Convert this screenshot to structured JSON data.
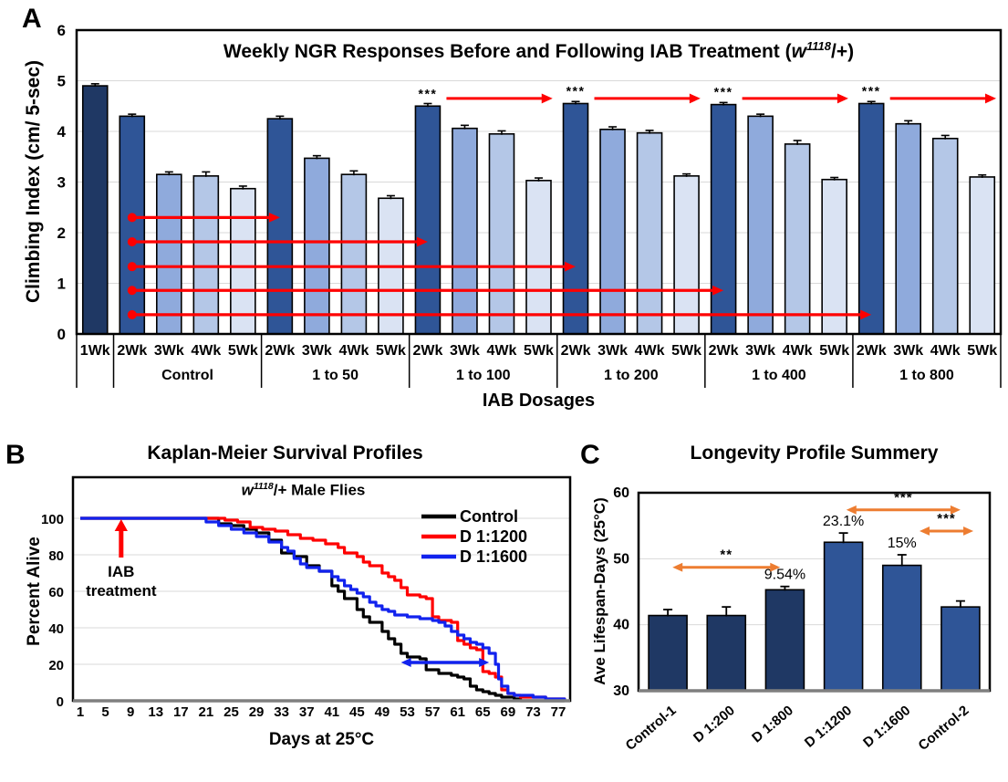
{
  "chart_data": [
    {
      "panel": "A",
      "type": "bar",
      "title_parts": {
        "pre": "Weekly NGR Responses Before and Following IAB Treatment (",
        "gene": "w",
        "sup": "1118",
        "post": "/+)"
      },
      "ylabel": "Climbing Index (cm/ 5-sec)",
      "xlabel": "IAB Dosages",
      "ylim": [
        0,
        6
      ],
      "yticks": [
        0,
        1,
        2,
        3,
        4,
        5,
        6
      ],
      "grid_color": "#D9D9D9",
      "bar_outline": "#000000",
      "annotation_color": "#FF0000",
      "week_colors": {
        "1Wk": "#1F3864",
        "2Wk": "#2F5597",
        "3Wk": "#8FAADC",
        "4Wk": "#B4C7E7",
        "5Wk": "#DAE3F3"
      },
      "groups": [
        {
          "name": "",
          "weeks": [
            "1Wk"
          ],
          "values": [
            4.9
          ],
          "errors": [
            0.04
          ]
        },
        {
          "name": "Control",
          "weeks": [
            "2Wk",
            "3Wk",
            "4Wk",
            "5Wk"
          ],
          "values": [
            4.3,
            3.15,
            3.12,
            2.87
          ],
          "errors": [
            0.04,
            0.05,
            0.08,
            0.05
          ]
        },
        {
          "name": "1 to 50",
          "weeks": [
            "2Wk",
            "3Wk",
            "4Wk",
            "5Wk"
          ],
          "values": [
            4.25,
            3.47,
            3.15,
            2.68
          ],
          "errors": [
            0.05,
            0.05,
            0.07,
            0.05
          ]
        },
        {
          "name": "1 to 100",
          "weeks": [
            "2Wk",
            "3Wk",
            "4Wk",
            "5Wk"
          ],
          "values": [
            4.5,
            4.06,
            3.95,
            3.03
          ],
          "errors": [
            0.05,
            0.06,
            0.06,
            0.05
          ],
          "sig": "***"
        },
        {
          "name": "1 to 200",
          "weeks": [
            "2Wk",
            "3Wk",
            "4Wk",
            "5Wk"
          ],
          "values": [
            4.55,
            4.04,
            3.97,
            3.12
          ],
          "errors": [
            0.04,
            0.05,
            0.05,
            0.04
          ],
          "sig": "***"
        },
        {
          "name": "1 to 400",
          "weeks": [
            "2Wk",
            "3Wk",
            "4Wk",
            "5Wk"
          ],
          "values": [
            4.53,
            4.3,
            3.75,
            3.05
          ],
          "errors": [
            0.04,
            0.04,
            0.07,
            0.04
          ],
          "sig": "***"
        },
        {
          "name": "1 to 800",
          "weeks": [
            "2Wk",
            "3Wk",
            "4Wk",
            "5Wk"
          ],
          "values": [
            4.55,
            4.15,
            3.86,
            3.1
          ],
          "errors": [
            0.04,
            0.06,
            0.06,
            0.04
          ],
          "sig": "***"
        }
      ],
      "sig_arrow_y": 4.65,
      "comparison_arrows": [
        {
          "from_group": 1,
          "from_bar": 0,
          "to_group": 2,
          "to_bar": 0,
          "y": 2.3
        },
        {
          "from_group": 1,
          "from_bar": 0,
          "to_group": 3,
          "to_bar": 0,
          "y": 1.82
        },
        {
          "from_group": 1,
          "from_bar": 0,
          "to_group": 4,
          "to_bar": 0,
          "y": 1.33
        },
        {
          "from_group": 1,
          "from_bar": 0,
          "to_group": 5,
          "to_bar": 0,
          "y": 0.86
        },
        {
          "from_group": 1,
          "from_bar": 0,
          "to_group": 6,
          "to_bar": 0,
          "y": 0.38
        }
      ]
    },
    {
      "panel": "B",
      "type": "line",
      "title": "Kaplan-Meier Survival Profiles",
      "subtitle_parts": {
        "gene": "w",
        "sup": "1118",
        "post": "/+ Male Flies"
      },
      "ylabel": "Percent Alive",
      "xlabel": "Days at 25°C",
      "xlim": [
        1,
        79
      ],
      "ylim": [
        0,
        100
      ],
      "xticks": [
        1,
        5,
        9,
        13,
        17,
        21,
        25,
        29,
        33,
        37,
        41,
        45,
        49,
        53,
        57,
        61,
        65,
        69,
        73,
        77
      ],
      "yticks": [
        0,
        20,
        40,
        60,
        80,
        100
      ],
      "grid_color": "#D9D9D9",
      "legend_position": "top-right",
      "series": [
        {
          "name": "Control",
          "color": "#000000",
          "points": [
            [
              1,
              100
            ],
            [
              21,
              100
            ],
            [
              23,
              97
            ],
            [
              25,
              96
            ],
            [
              27,
              94
            ],
            [
              29,
              92
            ],
            [
              31,
              88
            ],
            [
              33,
              81
            ],
            [
              35,
              79
            ],
            [
              37,
              74
            ],
            [
              39,
              71
            ],
            [
              41,
              63
            ],
            [
              42,
              60
            ],
            [
              43,
              56
            ],
            [
              45,
              50
            ],
            [
              46,
              46
            ],
            [
              47,
              43
            ],
            [
              49,
              38
            ],
            [
              50,
              34
            ],
            [
              51,
              31
            ],
            [
              52,
              26
            ],
            [
              53,
              24
            ],
            [
              55,
              23
            ],
            [
              56,
              17
            ],
            [
              58,
              15
            ],
            [
              60,
              14
            ],
            [
              61,
              13
            ],
            [
              62,
              12
            ],
            [
              63,
              8
            ],
            [
              64,
              6
            ],
            [
              65,
              5
            ],
            [
              66,
              4
            ],
            [
              67,
              3
            ],
            [
              68,
              2
            ],
            [
              70,
              1
            ],
            [
              71,
              0
            ],
            [
              78,
              0
            ]
          ]
        },
        {
          "name": "D 1:1200",
          "color": "#FF0000",
          "points": [
            [
              1,
              100
            ],
            [
              23,
              100
            ],
            [
              24,
              99
            ],
            [
              26,
              98
            ],
            [
              28,
              95
            ],
            [
              30,
              94
            ],
            [
              32,
              93
            ],
            [
              34,
              91
            ],
            [
              36,
              89
            ],
            [
              38,
              88
            ],
            [
              40,
              86
            ],
            [
              42,
              84
            ],
            [
              43,
              81
            ],
            [
              45,
              79
            ],
            [
              46,
              76
            ],
            [
              47,
              74
            ],
            [
              49,
              70
            ],
            [
              50,
              68
            ],
            [
              51,
              66
            ],
            [
              52,
              62
            ],
            [
              53,
              58
            ],
            [
              55,
              57
            ],
            [
              56,
              56
            ],
            [
              57,
              46
            ],
            [
              58,
              44
            ],
            [
              60,
              43
            ],
            [
              61,
              33
            ],
            [
              62,
              31
            ],
            [
              63,
              29
            ],
            [
              64,
              28
            ],
            [
              65,
              16
            ],
            [
              66,
              15
            ],
            [
              67,
              13
            ],
            [
              68,
              6
            ],
            [
              69,
              4
            ],
            [
              70,
              3
            ],
            [
              71,
              2
            ],
            [
              74,
              2
            ],
            [
              75,
              1
            ],
            [
              78,
              0
            ]
          ]
        },
        {
          "name": "D 1:1600",
          "color": "#1122EE",
          "points": [
            [
              1,
              100
            ],
            [
              20,
              100
            ],
            [
              21,
              98
            ],
            [
              23,
              96
            ],
            [
              25,
              94
            ],
            [
              27,
              92
            ],
            [
              29,
              90
            ],
            [
              31,
              87
            ],
            [
              33,
              84
            ],
            [
              34,
              82
            ],
            [
              35,
              78
            ],
            [
              36,
              75
            ],
            [
              37,
              73
            ],
            [
              39,
              71
            ],
            [
              41,
              68
            ],
            [
              42,
              66
            ],
            [
              43,
              63
            ],
            [
              44,
              61
            ],
            [
              45,
              59
            ],
            [
              46,
              57
            ],
            [
              47,
              54
            ],
            [
              48,
              52
            ],
            [
              49,
              50
            ],
            [
              50,
              49
            ],
            [
              51,
              47
            ],
            [
              53,
              46
            ],
            [
              55,
              45
            ],
            [
              57,
              44
            ],
            [
              58,
              43
            ],
            [
              59,
              41
            ],
            [
              60,
              38
            ],
            [
              61,
              36
            ],
            [
              62,
              34
            ],
            [
              63,
              32
            ],
            [
              64,
              31
            ],
            [
              65,
              29
            ],
            [
              66,
              26
            ],
            [
              67,
              20
            ],
            [
              67.5,
              12
            ],
            [
              68,
              8
            ],
            [
              69,
              4
            ],
            [
              70,
              3
            ],
            [
              73,
              2
            ],
            [
              75,
              1
            ],
            [
              78,
              0
            ]
          ]
        }
      ],
      "annotations": {
        "treatment_arrow": {
          "day": 7.5,
          "lines": [
            "IAB",
            "treatment"
          ],
          "color": "#FF0000"
        },
        "span_arrow": {
          "from_day": 52,
          "to_day": 66,
          "percent": 21,
          "color": "#1122EE"
        }
      }
    },
    {
      "panel": "C",
      "type": "bar",
      "title": "Longevity Profile Summery",
      "ylabel": "Ave Lifespan-Days (25°C)",
      "categories": [
        "Control-1",
        "D 1:200",
        "D 1:800",
        "D 1:1200",
        "D 1:1600",
        "Control-2"
      ],
      "values": [
        41.4,
        41.4,
        45.3,
        52.5,
        49.0,
        42.7
      ],
      "errors": [
        0.9,
        1.3,
        0.5,
        1.4,
        1.6,
        0.9
      ],
      "pct_labels": [
        "",
        "",
        "9.54%",
        "23.1%",
        "15%",
        ""
      ],
      "bar_colors": [
        "#1F3864",
        "#1F3864",
        "#1F3864",
        "#2F5597",
        "#2F5597",
        "#2F5597"
      ],
      "bar_outline": "#000000",
      "ylim": [
        30,
        60
      ],
      "yticks": [
        30,
        40,
        50,
        60
      ],
      "grid_color": "#D9D9D9",
      "annotation_color": "#ED7D31",
      "sig_arrows": [
        {
          "label": "**",
          "from_slot": 0.08,
          "to_slot": 1.92,
          "y": 48.7
        },
        {
          "label": "***",
          "from_slot": 3.05,
          "to_slot": 5.0,
          "y": 57.4
        },
        {
          "label": "***",
          "from_slot": 4.3,
          "to_slot": 5.22,
          "y": 54.2
        }
      ]
    }
  ]
}
